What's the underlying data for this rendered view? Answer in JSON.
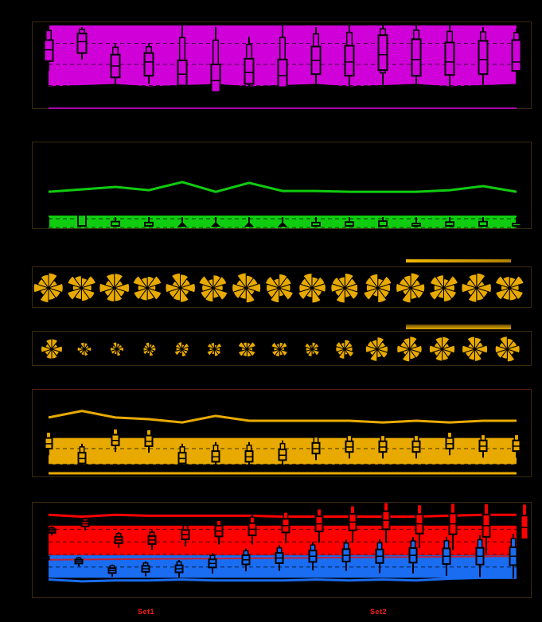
{
  "figure": {
    "background": "#000000",
    "panel_border_color": "#3a2a10"
  },
  "legend": {
    "items": [
      {
        "label": "Set1",
        "color": "#ff1a1a"
      },
      {
        "label": "Set2",
        "color": "#ff1a1a"
      }
    ]
  },
  "chart_data": [
    {
      "type": "boxen",
      "panel": "p1",
      "color": "#d000d8",
      "n_categories": 15,
      "title": "",
      "xlabel": "",
      "ylabel": "",
      "grid": "dashed horizontal",
      "medians": [
        0.7,
        0.8,
        0.5,
        0.55,
        0.4,
        0.32,
        0.42,
        0.38,
        0.57,
        0.55,
        0.64,
        0.58,
        0.55,
        0.58,
        0.55
      ],
      "q1": [
        0.56,
        0.66,
        0.36,
        0.38,
        0.26,
        0.18,
        0.28,
        0.24,
        0.4,
        0.38,
        0.45,
        0.38,
        0.39,
        0.4,
        0.44
      ],
      "q3": [
        0.82,
        0.9,
        0.64,
        0.66,
        0.57,
        0.52,
        0.59,
        0.58,
        0.74,
        0.75,
        0.88,
        0.83,
        0.79,
        0.81,
        0.82
      ],
      "whisker_lo": [
        0.44,
        0.58,
        0.28,
        0.28,
        0.12,
        0.02,
        0.1,
        0.05,
        0.1,
        0.1,
        0.1,
        0.1,
        0.25,
        0.16,
        0.28
      ],
      "whisker_hi": [
        1.0,
        0.98,
        0.78,
        0.78,
        1.0,
        0.98,
        0.86,
        1.0,
        0.98,
        1.0,
        1.0,
        1.0,
        1.0,
        0.98,
        0.96
      ],
      "band": {
        "top": 1.0,
        "bottom": 0.25
      }
    },
    {
      "type": "boxen+line",
      "panel": "p2",
      "color": "#10cc10",
      "n_categories": 15,
      "line": [
        0.43,
        0.46,
        0.49,
        0.45,
        0.55,
        0.43,
        0.54,
        0.44,
        0.44,
        0.43,
        0.43,
        0.43,
        0.45,
        0.5,
        0.43
      ],
      "box_tops": [
        0.02,
        0.28,
        0.14,
        0.12,
        0.0,
        0.0,
        0.0,
        0.0,
        0.12,
        0.13,
        0.15,
        0.1,
        0.13,
        0.14,
        0.1
      ],
      "band": {
        "top": 0.15,
        "bottom": 0.0
      }
    },
    {
      "type": "rose-glyphs",
      "panel": "p3",
      "color": "#e8aa00",
      "n_glyphs": 15,
      "legend_bar": true
    },
    {
      "type": "rose-glyphs",
      "panel": "p4",
      "color": "#e8aa00",
      "n_glyphs": 15,
      "glyph_scale": [
        0.75,
        0.5,
        0.5,
        0.5,
        0.55,
        0.55,
        0.65,
        0.6,
        0.55,
        0.7,
        0.85,
        0.9,
        0.9,
        0.9,
        0.9
      ],
      "legend_bar": true
    },
    {
      "type": "boxen+line",
      "panel": "p5",
      "color": "#e8aa00",
      "n_categories": 15,
      "line": [
        0.7,
        0.78,
        0.7,
        0.68,
        0.64,
        0.72,
        0.66,
        0.66,
        0.66,
        0.66,
        0.64,
        0.66,
        0.64,
        0.66,
        0.66
      ],
      "medians": [
        0.38,
        0.2,
        0.42,
        0.41,
        0.2,
        0.22,
        0.22,
        0.24,
        0.32,
        0.34,
        0.34,
        0.34,
        0.38,
        0.35,
        0.35
      ],
      "band": {
        "top": 0.45,
        "bottom": 0.05
      }
    },
    {
      "type": "boxen",
      "panel": "p6",
      "series": [
        {
          "name": "Set1",
          "color": "#ff0000",
          "medians": [
            0.72,
            0.8,
            0.62,
            0.62,
            0.68,
            0.72,
            0.74,
            0.78,
            0.8,
            0.82,
            0.84,
            0.8,
            0.8,
            0.78,
            0.76
          ],
          "upper_line": [
            0.9,
            0.88,
            0.9,
            0.89,
            0.89,
            0.89,
            0.89,
            0.88,
            0.88,
            0.88,
            0.88,
            0.88,
            0.89,
            0.9,
            0.9
          ]
        },
        {
          "name": "Set2",
          "color": "#1a6cf0",
          "medians": [
            0.42,
            0.38,
            0.28,
            0.3,
            0.3,
            0.36,
            0.4,
            0.42,
            0.44,
            0.45,
            0.44,
            0.45,
            0.44,
            0.44,
            0.44
          ],
          "lower_line": [
            0.18,
            0.16,
            0.17,
            0.17,
            0.18,
            0.17,
            0.17,
            0.17,
            0.18,
            0.17,
            0.18,
            0.17,
            0.19,
            0.2,
            0.2
          ]
        }
      ],
      "n_categories": 15
    }
  ]
}
